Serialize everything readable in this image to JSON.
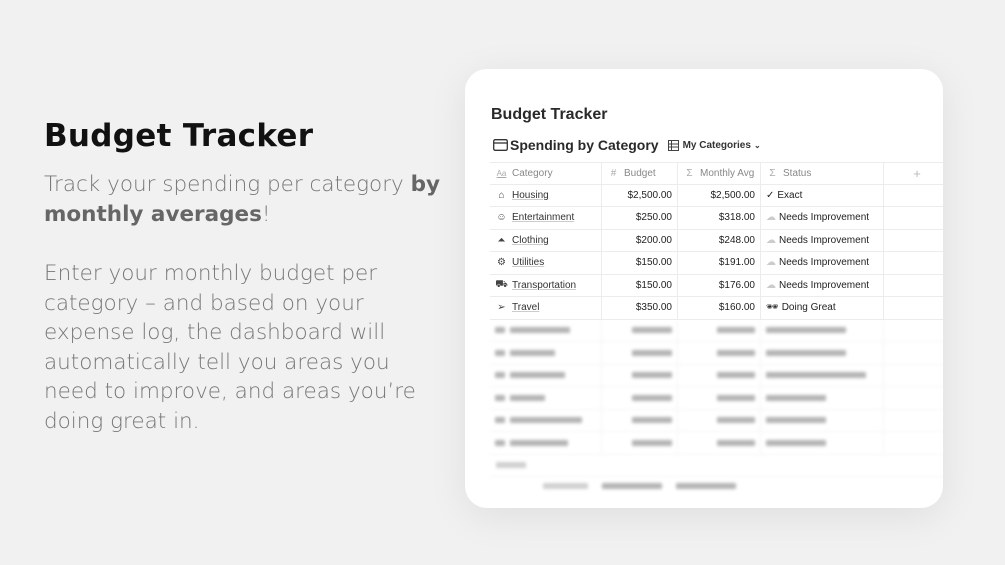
{
  "left": {
    "title": "Budget Tracker",
    "p1_a": "Track your spending per category ",
    "p1_b": "by monthly averages",
    "p1_c": "!",
    "p2": "Enter your monthly budget per category – and based on your expense log, the dashboard will automatically tell you areas you need to improve, and areas you’re doing great in."
  },
  "card": {
    "title": "Budget Tracker",
    "view_title": "Spending by Category",
    "view_selector": "My Categories",
    "columns": [
      "Category",
      "Budget",
      "Monthly Avg",
      "Status"
    ],
    "column_icons": [
      "text-icon",
      "hash-icon",
      "sigma-icon",
      "sigma-icon"
    ],
    "rows": [
      {
        "icon": "house-icon",
        "category": "Housing",
        "budget": "$2,500.00",
        "avg": "$2,500.00",
        "status_icon": "✓",
        "status": "Exact"
      },
      {
        "icon": "smiley-icon",
        "category": "Entertainment",
        "budget": "$250.00",
        "avg": "$318.00",
        "status_icon": "☁",
        "status": "Needs Improvement"
      },
      {
        "icon": "hanger-icon",
        "category": "Clothing",
        "budget": "$200.00",
        "avg": "$248.00",
        "status_icon": "☁",
        "status": "Needs Improvement"
      },
      {
        "icon": "gear-icon",
        "category": "Utilities",
        "budget": "$150.00",
        "avg": "$191.00",
        "status_icon": "☁",
        "status": "Needs Improvement"
      },
      {
        "icon": "truck-icon",
        "category": "Transportation",
        "budget": "$150.00",
        "avg": "$176.00",
        "status_icon": "☁",
        "status": "Needs Improvement"
      },
      {
        "icon": "paper-plane-icon",
        "category": "Travel",
        "budget": "$350.00",
        "avg": "$160.00",
        "status_icon": "🕶",
        "status": "Doing Great"
      }
    ]
  }
}
